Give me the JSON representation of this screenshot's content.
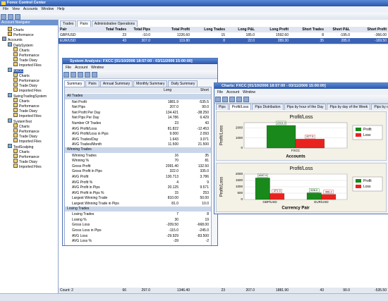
{
  "app": {
    "title": "Forex Control Center",
    "menu": [
      "File",
      "View",
      "Accounts",
      "Window",
      "Help"
    ]
  },
  "navigator": {
    "title": "Account Navigator",
    "items": [
      "Charts",
      "Performance"
    ],
    "accounts_label": "Accounts",
    "accounts": [
      {
        "name": "DailySystem",
        "items": [
          "Charts",
          "Performance",
          "Trade Diary",
          "Imported Files"
        ]
      },
      {
        "name": "FXCC",
        "items": [
          "Charts",
          "Performance",
          "Trade Diary",
          "Imported Files"
        ]
      },
      {
        "name": "SwingTradingSystem",
        "items": [
          "Charts",
          "Performance",
          "Trade Diary",
          "Imported Files"
        ]
      },
      {
        "name": "SystemTest",
        "items": [
          "Charts",
          "Performance",
          "Trade Diary",
          "Imported Files"
        ]
      },
      {
        "name": "TestScalping",
        "items": [
          "Charts",
          "Performance",
          "Trade Diary",
          "Imported Files"
        ]
      }
    ]
  },
  "main": {
    "tabs": [
      "Trades",
      "Pairs",
      "Administrative Operations"
    ],
    "columns": [
      "Pair",
      "Total Trades",
      "Total Pips",
      "Total Profit",
      "Long Trades",
      "Long P&L",
      "Long Profit",
      "Short Trades",
      "Short P&L",
      "Short Profit"
    ],
    "rows": [
      [
        "GBP/USD",
        "23",
        "-10.0",
        "1226.60",
        "15",
        "185.0",
        "1592.60",
        "8",
        "-195.0",
        "-366.00"
      ],
      [
        "EUR/USD",
        "43",
        "307.0",
        "119.80",
        "8",
        "22.0",
        "289.30",
        "35",
        "285.0",
        "-169.50"
      ]
    ],
    "footer": [
      "Count: 2",
      "66",
      "297.0",
      "1346.40",
      "23",
      "207.0",
      "1881.90",
      "43",
      "90.0",
      "-535.50"
    ]
  },
  "analysis": {
    "title": "System Analysis: FXCC [01/10/2006 18:57:00 - 03/11/2006 15:00:00]",
    "menu": [
      "File",
      "Account",
      "Window"
    ],
    "tabs": [
      "Summary",
      "Pairs",
      "Annual Summary",
      "Monthly Summary",
      "Daily Summary"
    ],
    "columns": [
      "Long",
      "Short"
    ],
    "sections": [
      {
        "title": "All Trades",
        "rows": [
          [
            "Net Profit",
            "1881.9",
            "-535.5"
          ],
          [
            "Net Pips",
            "207.0",
            "90.0"
          ],
          [
            "Net Profit Per Day",
            "134.421",
            "-38.250"
          ],
          [
            "Net Pips Per Day",
            "14.786",
            "6.429"
          ],
          [
            "Number Of Trades",
            "23",
            "43"
          ],
          [
            "AVG Profit/Loss",
            "81.822",
            "-12.453"
          ],
          [
            "AVG Profit/Loss in Pips",
            "9.000",
            "2.093"
          ],
          [
            "AVG Trades/Day",
            "1.643",
            "3.071"
          ],
          [
            "AVG Trades/Month",
            "11.500",
            "21.500"
          ]
        ]
      },
      {
        "title": "Winning Trades",
        "rows": [
          [
            "Winning Trades",
            "16",
            "35"
          ],
          [
            "Winning %",
            "70",
            "81"
          ],
          [
            "Gross Profit",
            "2091.40",
            "132.50"
          ],
          [
            "Gross Profit in Pips",
            "322.0",
            "335.0"
          ],
          [
            "AVG Profit",
            "130.713",
            "3.786"
          ],
          [
            "AVG Profit %",
            "4",
            "9"
          ],
          [
            "AVG Profit in Pips",
            "20.125",
            "9.571"
          ],
          [
            "AVG Profit in Pips %",
            "15",
            "253"
          ],
          [
            "Largest Winning Trade",
            "810.00",
            "50.00"
          ],
          [
            "Largest Winning Trade in Pips",
            "81.0",
            "10.0"
          ]
        ]
      },
      {
        "title": "Losing Trades",
        "rows": [
          [
            "Losing Trades",
            "7",
            "8"
          ],
          [
            "Losing %",
            "30",
            "19"
          ],
          [
            "Gross Loss",
            "-209.50",
            "-668.00"
          ],
          [
            "Gross Loss in Pips",
            "-115.0",
            "-245.0"
          ],
          [
            "AVG Loss",
            "-29.929",
            "-83.500"
          ],
          [
            "AVG Loss %",
            "-39",
            "-2"
          ]
        ]
      }
    ]
  },
  "charts_window": {
    "title": "Charts: FXCC [01/10/2006 18:57:00 - 03/11/2006 15:00:00]",
    "menu": [
      "File",
      "Account",
      "Window"
    ],
    "tabs": [
      "Pips",
      "Profit/Loss",
      "Pips Distribution",
      "Pips by hour of the Day",
      "Pips by day of the Week",
      "Pips by day"
    ]
  },
  "chart_data": [
    {
      "type": "bar",
      "title": "Profit/Loss",
      "y_label": "Profit/Loss",
      "x_label": "Accounts",
      "categories": [
        "FXCC"
      ],
      "series": [
        {
          "name": "Profit",
          "color": "#18891a",
          "values": [
            2223.9
          ]
        },
        {
          "name": "Loss",
          "color": "#e8231f",
          "values": [
            877.5
          ]
        }
      ],
      "ylim": [
        0,
        2500
      ],
      "yticks": [
        0,
        1000,
        2000
      ],
      "grid": true,
      "legend": "right"
    },
    {
      "type": "bar",
      "title": "Profit/Loss",
      "y_label": "Profit/Loss",
      "x_label": "Currency Pair",
      "categories": [
        "GBP/USD",
        "EUR/USD"
      ],
      "series": [
        {
          "name": "Profit",
          "color": "#18891a",
          "values": [
            1697.9,
            526.0
          ],
          "value_labels": [
            "1697.9",
            "526.0"
          ]
        },
        {
          "name": "Loss",
          "color": "#e8231f",
          "values": [
            471.3,
            406.2
          ]
        }
      ],
      "ylim": [
        0,
        2000
      ],
      "yticks": [
        0,
        500,
        1000,
        1500,
        2000
      ],
      "grid": true,
      "legend": "right"
    }
  ]
}
